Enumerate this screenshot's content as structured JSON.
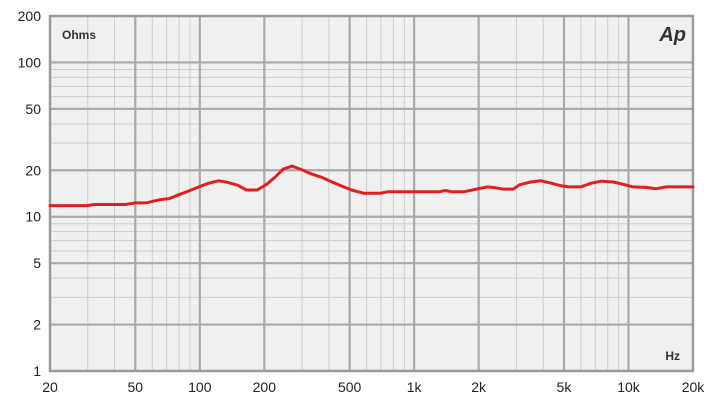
{
  "chart_data": {
    "type": "line",
    "title": "",
    "xlabel": "Hz",
    "ylabel": "Ohms",
    "x_scale": "log",
    "y_scale": "log",
    "xlim": [
      20,
      20000
    ],
    "ylim": [
      1,
      200
    ],
    "grid": true,
    "x_ticks": [
      {
        "value": 20,
        "label": "20"
      },
      {
        "value": 50,
        "label": "50"
      },
      {
        "value": 100,
        "label": "100"
      },
      {
        "value": 200,
        "label": "200"
      },
      {
        "value": 500,
        "label": "500"
      },
      {
        "value": 1000,
        "label": "1k"
      },
      {
        "value": 2000,
        "label": "2k"
      },
      {
        "value": 5000,
        "label": "5k"
      },
      {
        "value": 10000,
        "label": "10k"
      },
      {
        "value": 20000,
        "label": "20k"
      }
    ],
    "y_ticks": [
      {
        "value": 1,
        "label": "1"
      },
      {
        "value": 2,
        "label": "2"
      },
      {
        "value": 5,
        "label": "5"
      },
      {
        "value": 10,
        "label": "10"
      },
      {
        "value": 20,
        "label": "20"
      },
      {
        "value": 50,
        "label": "50"
      },
      {
        "value": 100,
        "label": "100"
      },
      {
        "value": 200,
        "label": "200"
      }
    ],
    "series": [
      {
        "color": "#e02020",
        "points": [
          [
            20,
            11.8
          ],
          [
            30,
            11.8
          ],
          [
            32,
            12.0
          ],
          [
            45,
            12.0
          ],
          [
            50,
            12.3
          ],
          [
            56,
            12.3
          ],
          [
            65,
            12.9
          ],
          [
            72,
            13.1
          ],
          [
            80,
            13.9
          ],
          [
            90,
            14.8
          ],
          [
            100,
            15.7
          ],
          [
            110,
            16.5
          ],
          [
            122,
            17.1
          ],
          [
            135,
            16.7
          ],
          [
            150,
            16.0
          ],
          [
            165,
            14.9
          ],
          [
            185,
            14.9
          ],
          [
            205,
            16.2
          ],
          [
            225,
            18.1
          ],
          [
            245,
            20.4
          ],
          [
            270,
            21.3
          ],
          [
            300,
            20.1
          ],
          [
            330,
            19.0
          ],
          [
            370,
            18.0
          ],
          [
            410,
            16.9
          ],
          [
            460,
            15.8
          ],
          [
            510,
            14.9
          ],
          [
            580,
            14.2
          ],
          [
            700,
            14.2
          ],
          [
            750,
            14.5
          ],
          [
            1000,
            14.5
          ],
          [
            1300,
            14.5
          ],
          [
            1400,
            14.8
          ],
          [
            1500,
            14.5
          ],
          [
            1700,
            14.5
          ],
          [
            2000,
            15.2
          ],
          [
            2200,
            15.6
          ],
          [
            2400,
            15.4
          ],
          [
            2600,
            15.1
          ],
          [
            2900,
            15.1
          ],
          [
            3100,
            16.1
          ],
          [
            3500,
            16.8
          ],
          [
            3900,
            17.1
          ],
          [
            4300,
            16.6
          ],
          [
            4800,
            15.9
          ],
          [
            5300,
            15.6
          ],
          [
            6000,
            15.6
          ],
          [
            6700,
            16.5
          ],
          [
            7500,
            17.0
          ],
          [
            8500,
            16.8
          ],
          [
            9500,
            16.2
          ],
          [
            10500,
            15.6
          ],
          [
            12000,
            15.5
          ],
          [
            13500,
            15.2
          ],
          [
            15000,
            15.6
          ],
          [
            20000,
            15.6
          ]
        ]
      }
    ],
    "colors": {
      "background": "#ffffff",
      "plot_background": "#f0f0f0",
      "major_grid": "#a9a9a9",
      "minor_grid": "#cccccc",
      "frame": "#9a9a9a"
    },
    "logo_text": "Ap"
  }
}
